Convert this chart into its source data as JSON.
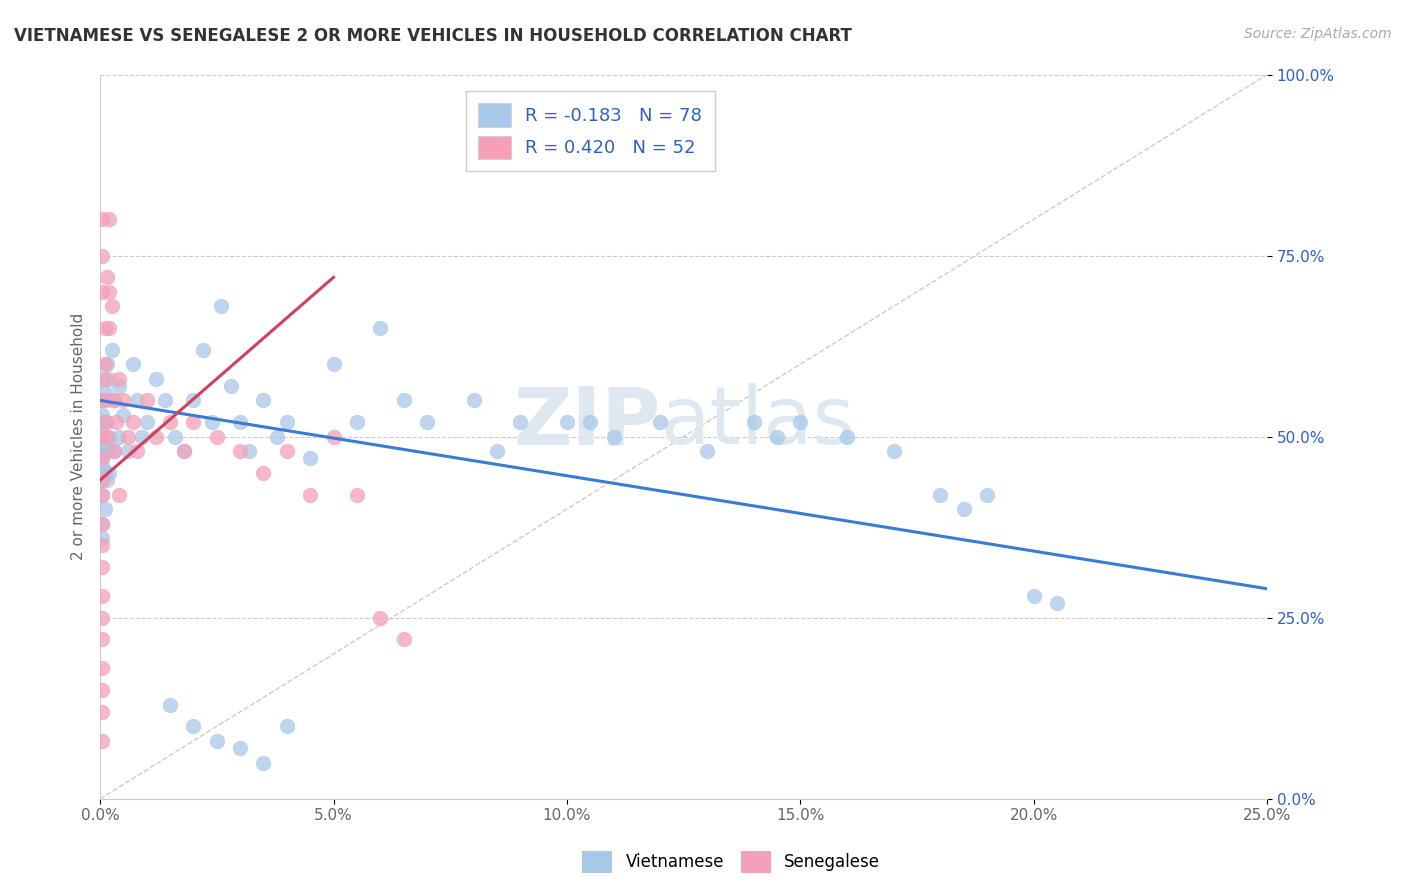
{
  "title": "VIETNAMESE VS SENEGALESE 2 OR MORE VEHICLES IN HOUSEHOLD CORRELATION CHART",
  "source_text": "Source: ZipAtlas.com",
  "ylabel": "2 or more Vehicles in Household",
  "xlim": [
    0.0,
    25.0
  ],
  "ylim": [
    0.0,
    100.0
  ],
  "xticks": [
    0.0,
    5.0,
    10.0,
    15.0,
    20.0,
    25.0
  ],
  "yticks": [
    0.0,
    25.0,
    50.0,
    75.0,
    100.0
  ],
  "xtick_labels": [
    "0.0%",
    "5.0%",
    "10.0%",
    "15.0%",
    "20.0%",
    "25.0%"
  ],
  "ytick_labels": [
    "0.0%",
    "25.0%",
    "50.0%",
    "75.0%",
    "100.0%"
  ],
  "vietnamese_color": "#a8c8e8",
  "senegalese_color": "#f4a0b8",
  "vietnamese_line_color": "#3a7bd5",
  "senegalese_line_color": "#d04060",
  "r_vietnamese": -0.183,
  "n_vietnamese": 78,
  "r_senegalese": 0.42,
  "n_senegalese": 52,
  "legend_r_color": "#3060c0",
  "watermark_zip": "ZIP",
  "watermark_atlas": "atlas",
  "blue_trend_x": [
    0.0,
    25.0
  ],
  "blue_trend_y": [
    55.0,
    29.0
  ],
  "pink_trend_x": [
    0.0,
    5.0
  ],
  "pink_trend_y": [
    44.0,
    72.0
  ],
  "diag_line_x": [
    0.0,
    25.0
  ],
  "diag_line_y": [
    0.0,
    100.0
  ],
  "vietnamese_scatter": [
    [
      0.05,
      52
    ],
    [
      0.05,
      48
    ],
    [
      0.05,
      55
    ],
    [
      0.05,
      47
    ],
    [
      0.05,
      58
    ],
    [
      0.05,
      44
    ],
    [
      0.05,
      50
    ],
    [
      0.05,
      53
    ],
    [
      0.05,
      46
    ],
    [
      0.05,
      42
    ],
    [
      0.05,
      38
    ],
    [
      0.05,
      36
    ],
    [
      0.1,
      56
    ],
    [
      0.1,
      49
    ],
    [
      0.1,
      45
    ],
    [
      0.1,
      40
    ],
    [
      0.15,
      60
    ],
    [
      0.15,
      52
    ],
    [
      0.15,
      48
    ],
    [
      0.15,
      44
    ],
    [
      0.2,
      58
    ],
    [
      0.2,
      50
    ],
    [
      0.2,
      45
    ],
    [
      0.25,
      62
    ],
    [
      0.3,
      55
    ],
    [
      0.3,
      48
    ],
    [
      0.4,
      57
    ],
    [
      0.4,
      50
    ],
    [
      0.5,
      53
    ],
    [
      0.6,
      48
    ],
    [
      0.7,
      60
    ],
    [
      0.8,
      55
    ],
    [
      0.9,
      50
    ],
    [
      1.0,
      52
    ],
    [
      1.2,
      58
    ],
    [
      1.4,
      55
    ],
    [
      1.6,
      50
    ],
    [
      1.8,
      48
    ],
    [
      2.0,
      55
    ],
    [
      2.2,
      62
    ],
    [
      2.4,
      52
    ],
    [
      2.6,
      68
    ],
    [
      2.8,
      57
    ],
    [
      3.0,
      52
    ],
    [
      3.2,
      48
    ],
    [
      3.5,
      55
    ],
    [
      3.8,
      50
    ],
    [
      4.0,
      52
    ],
    [
      4.5,
      47
    ],
    [
      5.0,
      60
    ],
    [
      5.5,
      52
    ],
    [
      6.0,
      65
    ],
    [
      6.5,
      55
    ],
    [
      7.0,
      52
    ],
    [
      8.0,
      55
    ],
    [
      8.5,
      48
    ],
    [
      9.0,
      52
    ],
    [
      10.0,
      52
    ],
    [
      10.5,
      52
    ],
    [
      11.0,
      50
    ],
    [
      12.0,
      52
    ],
    [
      13.0,
      48
    ],
    [
      14.0,
      52
    ],
    [
      14.5,
      50
    ],
    [
      15.0,
      52
    ],
    [
      16.0,
      50
    ],
    [
      17.0,
      48
    ],
    [
      18.0,
      42
    ],
    [
      18.5,
      40
    ],
    [
      19.0,
      42
    ],
    [
      20.0,
      28
    ],
    [
      20.5,
      27
    ],
    [
      1.5,
      13
    ],
    [
      2.0,
      10
    ],
    [
      2.5,
      8
    ],
    [
      3.0,
      7
    ],
    [
      3.5,
      5
    ],
    [
      4.0,
      10
    ]
  ],
  "senegalese_scatter": [
    [
      0.05,
      55
    ],
    [
      0.05,
      50
    ],
    [
      0.05,
      47
    ],
    [
      0.05,
      44
    ],
    [
      0.05,
      42
    ],
    [
      0.05,
      38
    ],
    [
      0.05,
      35
    ],
    [
      0.05,
      32
    ],
    [
      0.05,
      28
    ],
    [
      0.05,
      25
    ],
    [
      0.05,
      22
    ],
    [
      0.05,
      18
    ],
    [
      0.05,
      15
    ],
    [
      0.05,
      12
    ],
    [
      0.05,
      8
    ],
    [
      0.05,
      80
    ],
    [
      0.05,
      75
    ],
    [
      0.05,
      70
    ],
    [
      0.1,
      65
    ],
    [
      0.1,
      60
    ],
    [
      0.1,
      58
    ],
    [
      0.1,
      52
    ],
    [
      0.15,
      72
    ],
    [
      0.15,
      55
    ],
    [
      0.15,
      50
    ],
    [
      0.2,
      80
    ],
    [
      0.2,
      70
    ],
    [
      0.2,
      65
    ],
    [
      0.25,
      68
    ],
    [
      0.3,
      55
    ],
    [
      0.3,
      48
    ],
    [
      0.35,
      52
    ],
    [
      0.4,
      58
    ],
    [
      0.4,
      42
    ],
    [
      0.5,
      55
    ],
    [
      0.6,
      50
    ],
    [
      0.7,
      52
    ],
    [
      0.8,
      48
    ],
    [
      1.0,
      55
    ],
    [
      1.2,
      50
    ],
    [
      1.5,
      52
    ],
    [
      1.8,
      48
    ],
    [
      2.0,
      52
    ],
    [
      2.5,
      50
    ],
    [
      3.0,
      48
    ],
    [
      3.5,
      45
    ],
    [
      4.0,
      48
    ],
    [
      4.5,
      42
    ],
    [
      5.0,
      50
    ],
    [
      5.5,
      42
    ],
    [
      6.0,
      25
    ],
    [
      6.5,
      22
    ]
  ]
}
